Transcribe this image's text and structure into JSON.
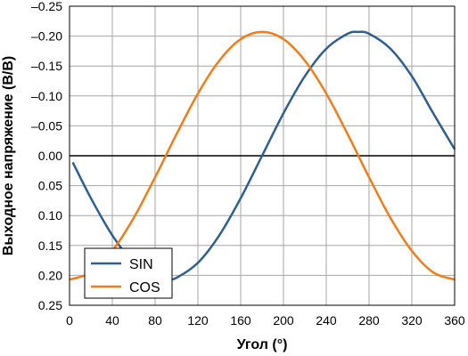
{
  "chart_data": {
    "type": "line",
    "title": "",
    "xlabel": "Угол (°)",
    "ylabel": "Выходное напряжение (В/В)",
    "xlim": [
      0,
      360
    ],
    "ylim": [
      -0.25,
      0.25
    ],
    "x_ticks": [
      0,
      40,
      80,
      120,
      160,
      200,
      240,
      280,
      320,
      360
    ],
    "x_tick_labels": [
      "0",
      "40",
      "80",
      "120",
      "160",
      "200",
      "240",
      "280",
      "320",
      "360"
    ],
    "y_ticks": [
      -0.25,
      -0.2,
      -0.15,
      -0.1,
      -0.05,
      0.0,
      0.05,
      0.1,
      0.15,
      0.2,
      0.25
    ],
    "y_tick_labels": [
      "–0.25",
      "–0.20",
      "–0.15",
      "–0.10",
      "–0.05",
      "0.00",
      "0.05",
      "0.10",
      "0.15",
      "0.20",
      "0.25"
    ],
    "y_axis_inverted": true,
    "grid": true,
    "legend_position": "bottom-left",
    "x": [
      0,
      20,
      40,
      60,
      80,
      90,
      100,
      120,
      140,
      160,
      180,
      200,
      220,
      240,
      260,
      270,
      280,
      300,
      320,
      340,
      360
    ],
    "series": [
      {
        "name": "SIN",
        "color": "#2f5f8f",
        "x": [
          3,
          20,
          40,
          60,
          80,
          90,
          100,
          120,
          140,
          160,
          180,
          200,
          220,
          240,
          260,
          270,
          280,
          300,
          320,
          340,
          360
        ],
        "values": [
          0.011,
          0.071,
          0.133,
          0.179,
          0.204,
          0.207,
          0.204,
          0.179,
          0.133,
          0.071,
          0.0,
          -0.071,
          -0.133,
          -0.179,
          -0.204,
          -0.207,
          -0.204,
          -0.179,
          -0.133,
          -0.071,
          -0.011
        ]
      },
      {
        "name": "COS",
        "color": "#f07d1a",
        "x": [
          0,
          20,
          40,
          60,
          80,
          90,
          100,
          120,
          140,
          160,
          180,
          200,
          220,
          240,
          260,
          270,
          280,
          300,
          320,
          340,
          360
        ],
        "values": [
          0.207,
          0.195,
          0.159,
          0.104,
          0.036,
          0.0,
          -0.036,
          -0.104,
          -0.159,
          -0.195,
          -0.207,
          -0.195,
          -0.159,
          -0.104,
          -0.036,
          0.0,
          0.036,
          0.104,
          0.159,
          0.195,
          0.207
        ]
      }
    ]
  }
}
